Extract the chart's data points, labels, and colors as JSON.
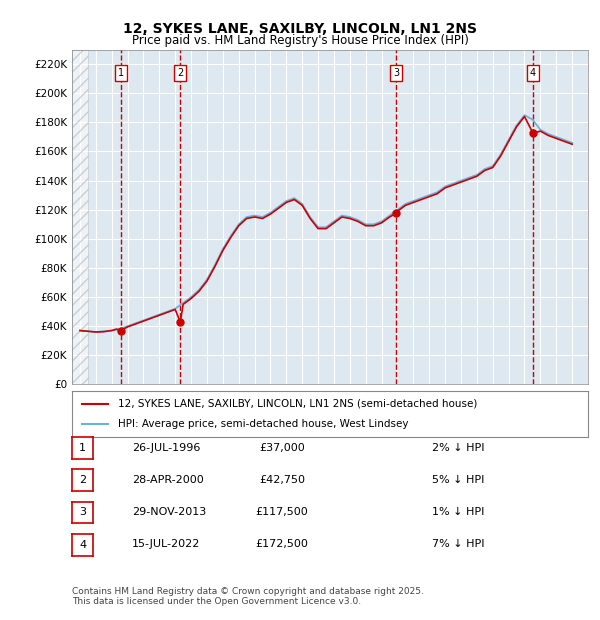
{
  "title1": "12, SYKES LANE, SAXILBY, LINCOLN, LN1 2NS",
  "title2": "Price paid vs. HM Land Registry's House Price Index (HPI)",
  "ylabel": "",
  "xlabel": "",
  "ylim": [
    0,
    230000
  ],
  "yticks": [
    0,
    20000,
    40000,
    60000,
    80000,
    100000,
    120000,
    140000,
    160000,
    180000,
    200000,
    220000
  ],
  "xlim_start": 1993.5,
  "xlim_end": 2026.0,
  "bg_color": "#ffffff",
  "plot_bg_color": "#dde8f0",
  "hatch_end_year": 1994.5,
  "transactions": [
    {
      "num": 1,
      "date": "26-JUL-1996",
      "price": 37000,
      "year": 1996.57,
      "pct": "2%",
      "dir": "↓"
    },
    {
      "num": 2,
      "date": "28-APR-2000",
      "price": 42750,
      "year": 2000.32,
      "pct": "5%",
      "dir": "↓"
    },
    {
      "num": 3,
      "date": "29-NOV-2013",
      "price": 117500,
      "year": 2013.91,
      "pct": "1%",
      "dir": "↓"
    },
    {
      "num": 4,
      "date": "15-JUL-2022",
      "price": 172500,
      "year": 2022.54,
      "pct": "7%",
      "dir": "↓"
    }
  ],
  "legend_line1": "12, SYKES LANE, SAXILBY, LINCOLN, LN1 2NS (semi-detached house)",
  "legend_line2": "HPI: Average price, semi-detached house, West Lindsey",
  "footnote": "Contains HM Land Registry data © Crown copyright and database right 2025.\nThis data is licensed under the Open Government Licence v3.0.",
  "hpi_color": "#6ab0de",
  "price_color": "#cc0000",
  "dot_color": "#cc0000",
  "vline_color": "#cc0000",
  "number_box_color": "#cc0000",
  "hpi_data": {
    "years": [
      1994.0,
      1994.5,
      1995.0,
      1995.5,
      1996.0,
      1996.5,
      1997.0,
      1997.5,
      1998.0,
      1998.5,
      1999.0,
      1999.5,
      2000.0,
      2000.5,
      2001.0,
      2001.5,
      2002.0,
      2002.5,
      2003.0,
      2003.5,
      2004.0,
      2004.5,
      2005.0,
      2005.5,
      2006.0,
      2006.5,
      2007.0,
      2007.5,
      2008.0,
      2008.5,
      2009.0,
      2009.5,
      2010.0,
      2010.5,
      2011.0,
      2011.5,
      2012.0,
      2012.5,
      2013.0,
      2013.5,
      2014.0,
      2014.5,
      2015.0,
      2015.5,
      2016.0,
      2016.5,
      2017.0,
      2017.5,
      2018.0,
      2018.5,
      2019.0,
      2019.5,
      2020.0,
      2020.5,
      2021.0,
      2021.5,
      2022.0,
      2022.5,
      2023.0,
      2023.5,
      2024.0,
      2024.5,
      2025.0
    ],
    "values": [
      37000,
      36500,
      36000,
      36500,
      37000,
      38000,
      40000,
      42000,
      44000,
      46000,
      48000,
      50000,
      52000,
      56000,
      60000,
      65000,
      72000,
      82000,
      93000,
      102000,
      110000,
      115000,
      116000,
      115000,
      118000,
      122000,
      126000,
      128000,
      124000,
      115000,
      108000,
      108000,
      112000,
      116000,
      115000,
      113000,
      110000,
      110000,
      112000,
      116000,
      120000,
      124000,
      126000,
      128000,
      130000,
      132000,
      136000,
      138000,
      140000,
      142000,
      144000,
      148000,
      150000,
      158000,
      168000,
      178000,
      185000,
      182000,
      175000,
      172000,
      170000,
      168000,
      166000
    ]
  },
  "price_index_data": {
    "years": [
      1994.0,
      1994.5,
      1995.0,
      1995.5,
      1996.0,
      1996.3,
      1996.57,
      1997.0,
      1997.5,
      1998.0,
      1998.5,
      1999.0,
      1999.5,
      2000.0,
      2000.32,
      2000.5,
      2001.0,
      2001.5,
      2002.0,
      2002.5,
      2003.0,
      2003.5,
      2004.0,
      2004.5,
      2005.0,
      2005.5,
      2006.0,
      2006.5,
      2007.0,
      2007.5,
      2008.0,
      2008.5,
      2009.0,
      2009.5,
      2010.0,
      2010.5,
      2011.0,
      2011.5,
      2012.0,
      2012.5,
      2013.0,
      2013.5,
      2013.91,
      2014.0,
      2014.5,
      2015.0,
      2015.5,
      2016.0,
      2016.5,
      2017.0,
      2017.5,
      2018.0,
      2018.5,
      2019.0,
      2019.5,
      2020.0,
      2020.5,
      2021.0,
      2021.5,
      2022.0,
      2022.54,
      2023.0,
      2023.5,
      2024.0,
      2024.5,
      2025.0
    ],
    "values": [
      37000,
      36500,
      36000,
      36200,
      37000,
      38000,
      37000,
      39500,
      41500,
      43500,
      45500,
      47500,
      49500,
      51500,
      42750,
      55000,
      59000,
      64000,
      71000,
      81000,
      92000,
      101000,
      109000,
      114000,
      115000,
      114000,
      117000,
      121000,
      125000,
      127000,
      123000,
      114000,
      107000,
      107000,
      111000,
      115000,
      114000,
      112000,
      109000,
      109000,
      111000,
      115000,
      117500,
      119000,
      123000,
      125000,
      127000,
      129000,
      131000,
      135000,
      137000,
      139000,
      141000,
      143000,
      147000,
      149000,
      157000,
      167000,
      177000,
      184000,
      172500,
      174000,
      171000,
      169000,
      167000,
      165000
    ]
  }
}
